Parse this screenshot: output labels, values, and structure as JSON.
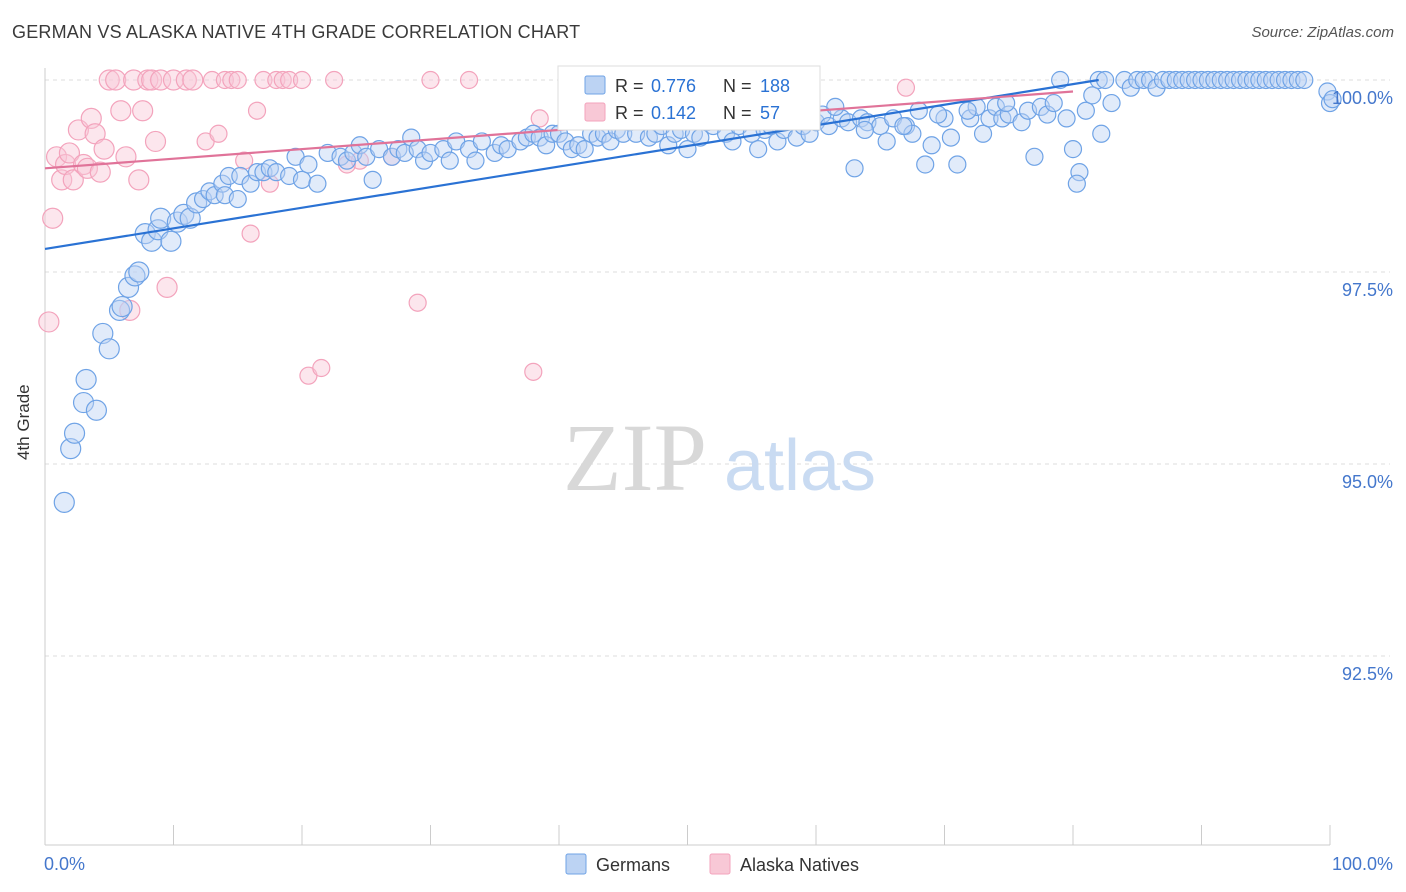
{
  "title": "GERMAN VS ALASKA NATIVE 4TH GRADE CORRELATION CHART",
  "source": "Source: ZipAtlas.com",
  "watermark": {
    "zip": "ZIP",
    "atlas": "atlas"
  },
  "colors": {
    "blue": "#6fa3e6",
    "blue_line": "#2a72d4",
    "pink": "#f3a3bc",
    "pink_line": "#e07399",
    "tick_text": "#4477cc",
    "grid": "#dddddd"
  },
  "chart_data": {
    "type": "scatter",
    "title": "GERMAN VS ALASKA NATIVE 4TH GRADE CORRELATION CHART",
    "xlabel": "",
    "ylabel": "4th Grade",
    "xlim": [
      0,
      100
    ],
    "ylim": [
      90,
      100.4
    ],
    "x_tick_labels": [
      "0.0%",
      "100.0%"
    ],
    "y_ticks": [
      100,
      97.5,
      95,
      92.5
    ],
    "y_tick_labels": [
      "100.0%",
      "97.5%",
      "95.0%",
      "92.5%"
    ],
    "grid": true,
    "legend_position": "bottom-center",
    "stats": [
      {
        "r_label": "R =",
        "r": "0.776",
        "n_label": "N =",
        "n": "188"
      },
      {
        "r_label": "R =",
        "r": "0.142",
        "n_label": "N =",
        "n": "57"
      }
    ],
    "series": [
      {
        "name": "Germans",
        "color": "#6fa3e6",
        "trend": {
          "x": [
            0,
            82
          ],
          "y": [
            97.8,
            100.0
          ]
        },
        "points": [
          [
            1.5,
            94.5
          ],
          [
            2,
            95.2
          ],
          [
            2.3,
            95.4
          ],
          [
            3,
            95.8
          ],
          [
            3.2,
            96.1
          ],
          [
            4,
            95.7
          ],
          [
            4.5,
            96.7
          ],
          [
            5,
            96.5
          ],
          [
            5.8,
            97.0
          ],
          [
            6,
            97.05
          ],
          [
            6.5,
            97.3
          ],
          [
            7,
            97.45
          ],
          [
            7.3,
            97.5
          ],
          [
            7.8,
            98.0
          ],
          [
            8.3,
            97.9
          ],
          [
            8.8,
            98.05
          ],
          [
            9,
            98.2
          ],
          [
            9.8,
            97.9
          ],
          [
            10.3,
            98.15
          ],
          [
            10.8,
            98.25
          ],
          [
            11.3,
            98.2
          ],
          [
            11.8,
            98.4
          ],
          [
            12.3,
            98.45
          ],
          [
            12.8,
            98.55
          ],
          [
            13.2,
            98.5
          ],
          [
            13.8,
            98.65
          ],
          [
            14,
            98.5
          ],
          [
            14.3,
            98.75
          ],
          [
            15,
            98.45
          ],
          [
            15.2,
            98.75
          ],
          [
            16,
            98.65
          ],
          [
            16.5,
            98.8
          ],
          [
            17,
            98.8
          ],
          [
            17.5,
            98.85
          ],
          [
            18,
            98.8
          ],
          [
            19,
            98.75
          ],
          [
            19.5,
            99.0
          ],
          [
            20,
            98.7
          ],
          [
            20.5,
            98.9
          ],
          [
            21.2,
            98.65
          ],
          [
            22,
            99.05
          ],
          [
            23,
            99.0
          ],
          [
            23.5,
            98.95
          ],
          [
            24,
            99.05
          ],
          [
            24.5,
            99.15
          ],
          [
            25,
            99.0
          ],
          [
            25.5,
            98.7
          ],
          [
            26,
            99.1
          ],
          [
            27,
            99.0
          ],
          [
            27.5,
            99.1
          ],
          [
            28,
            99.05
          ],
          [
            28.5,
            99.25
          ],
          [
            29,
            99.1
          ],
          [
            29.5,
            98.95
          ],
          [
            30,
            99.05
          ],
          [
            31,
            99.1
          ],
          [
            31.5,
            98.95
          ],
          [
            32,
            99.2
          ],
          [
            33,
            99.1
          ],
          [
            33.5,
            98.95
          ],
          [
            34,
            99.2
          ],
          [
            35,
            99.05
          ],
          [
            35.5,
            99.15
          ],
          [
            36,
            99.1
          ],
          [
            37,
            99.2
          ],
          [
            37.5,
            99.25
          ],
          [
            38,
            99.3
          ],
          [
            38.5,
            99.25
          ],
          [
            39,
            99.15
          ],
          [
            39.5,
            99.3
          ],
          [
            40,
            99.3
          ],
          [
            40.5,
            99.2
          ],
          [
            41,
            99.1
          ],
          [
            41.5,
            99.15
          ],
          [
            42,
            99.1
          ],
          [
            42.5,
            99.3
          ],
          [
            43,
            99.25
          ],
          [
            43.5,
            99.3
          ],
          [
            44,
            99.2
          ],
          [
            44.5,
            99.35
          ],
          [
            45,
            99.3
          ],
          [
            45.5,
            99.45
          ],
          [
            46,
            99.3
          ],
          [
            47,
            99.25
          ],
          [
            47.5,
            99.3
          ],
          [
            48,
            99.4
          ],
          [
            48.5,
            99.15
          ],
          [
            49,
            99.3
          ],
          [
            49.5,
            99.35
          ],
          [
            50,
            99.1
          ],
          [
            50.5,
            99.3
          ],
          [
            51,
            99.25
          ],
          [
            51.5,
            99.45
          ],
          [
            52,
            99.4
          ],
          [
            53,
            99.3
          ],
          [
            53.5,
            99.2
          ],
          [
            54,
            99.4
          ],
          [
            55,
            99.3
          ],
          [
            55.5,
            99.1
          ],
          [
            56,
            99.35
          ],
          [
            56.5,
            99.4
          ],
          [
            57,
            99.2
          ],
          [
            57.5,
            99.35
          ],
          [
            58,
            99.5
          ],
          [
            58.5,
            99.25
          ],
          [
            59,
            99.4
          ],
          [
            59.5,
            99.3
          ],
          [
            60,
            99.45
          ],
          [
            60.5,
            99.55
          ],
          [
            61,
            99.4
          ],
          [
            62,
            99.5
          ],
          [
            62.5,
            99.45
          ],
          [
            63,
            98.85
          ],
          [
            63.5,
            99.5
          ],
          [
            64,
            99.45
          ],
          [
            65,
            99.4
          ],
          [
            65.5,
            99.2
          ],
          [
            66,
            99.5
          ],
          [
            67,
            99.4
          ],
          [
            67.5,
            99.3
          ],
          [
            68,
            99.6
          ],
          [
            68.5,
            98.9
          ],
          [
            69,
            99.15
          ],
          [
            70,
            99.5
          ],
          [
            70.5,
            99.25
          ],
          [
            71,
            98.9
          ],
          [
            72,
            99.5
          ],
          [
            72.5,
            99.65
          ],
          [
            73,
            99.3
          ],
          [
            73.5,
            99.5
          ],
          [
            74,
            99.65
          ],
          [
            74.5,
            99.5
          ],
          [
            75,
            99.55
          ],
          [
            76,
            99.45
          ],
          [
            76.5,
            99.6
          ],
          [
            77,
            99.0
          ],
          [
            77.5,
            99.65
          ],
          [
            78,
            99.55
          ],
          [
            78.5,
            99.7
          ],
          [
            79,
            100.0
          ],
          [
            79.5,
            99.5
          ],
          [
            80,
            99.1
          ],
          [
            80.5,
            98.8
          ],
          [
            81,
            99.6
          ],
          [
            81.5,
            99.8
          ],
          [
            82,
            100.0
          ],
          [
            82.5,
            100.0
          ],
          [
            83,
            99.7
          ],
          [
            84,
            100.0
          ],
          [
            84.5,
            99.9
          ],
          [
            85,
            100.0
          ],
          [
            85.5,
            100.0
          ],
          [
            86,
            100.0
          ],
          [
            86.5,
            99.9
          ],
          [
            87,
            100.0
          ],
          [
            87.5,
            100.0
          ],
          [
            88,
            100.0
          ],
          [
            88.5,
            100.0
          ],
          [
            89,
            100.0
          ],
          [
            89.5,
            100.0
          ],
          [
            90,
            100.0
          ],
          [
            90.5,
            100.0
          ],
          [
            91,
            100.0
          ],
          [
            91.5,
            100.0
          ],
          [
            92,
            100.0
          ],
          [
            92.5,
            100.0
          ],
          [
            93,
            100.0
          ],
          [
            93.5,
            100.0
          ],
          [
            94,
            100.0
          ],
          [
            94.5,
            100.0
          ],
          [
            95,
            100.0
          ],
          [
            95.5,
            100.0
          ],
          [
            96,
            100.0
          ],
          [
            96.5,
            100.0
          ],
          [
            97,
            100.0
          ],
          [
            97.5,
            100.0
          ],
          [
            98,
            100.0
          ],
          [
            99.8,
            99.85
          ],
          [
            100,
            99.7
          ],
          [
            100.2,
            99.75
          ],
          [
            61.5,
            99.65
          ],
          [
            63.8,
            99.35
          ],
          [
            66.8,
            99.4
          ],
          [
            69.5,
            99.55
          ],
          [
            71.8,
            99.6
          ],
          [
            74.8,
            99.7
          ],
          [
            82.2,
            99.3
          ],
          [
            80.3,
            98.65
          ]
        ]
      },
      {
        "name": "Alaska Natives",
        "color": "#f3a3bc",
        "trend": {
          "x": [
            0,
            80
          ],
          "y": [
            98.85,
            99.85
          ]
        },
        "points": [
          [
            0.3,
            96.85
          ],
          [
            0.6,
            98.2
          ],
          [
            0.9,
            99.0
          ],
          [
            1.3,
            98.7
          ],
          [
            1.6,
            98.9
          ],
          [
            1.9,
            99.05
          ],
          [
            2.2,
            98.7
          ],
          [
            2.6,
            99.35
          ],
          [
            3.0,
            98.9
          ],
          [
            3.3,
            98.85
          ],
          [
            3.6,
            99.5
          ],
          [
            3.9,
            99.3
          ],
          [
            4.3,
            98.8
          ],
          [
            4.6,
            99.1
          ],
          [
            5.0,
            100.0
          ],
          [
            5.5,
            100.0
          ],
          [
            5.9,
            99.6
          ],
          [
            6.3,
            99.0
          ],
          [
            6.6,
            97.0
          ],
          [
            6.9,
            100.0
          ],
          [
            7.3,
            98.7
          ],
          [
            7.6,
            99.6
          ],
          [
            8.0,
            100.0
          ],
          [
            8.3,
            100.0
          ],
          [
            8.6,
            99.2
          ],
          [
            9.0,
            100.0
          ],
          [
            9.5,
            97.3
          ],
          [
            10.0,
            100.0
          ],
          [
            11.0,
            100.0
          ],
          [
            11.5,
            100.0
          ],
          [
            12.5,
            99.2
          ],
          [
            13.0,
            100.0
          ],
          [
            13.5,
            99.3
          ],
          [
            14.0,
            100.0
          ],
          [
            14.5,
            100.0
          ],
          [
            15.0,
            100.0
          ],
          [
            15.5,
            98.95
          ],
          [
            16.0,
            98.0
          ],
          [
            16.5,
            99.6
          ],
          [
            17.0,
            100.0
          ],
          [
            17.5,
            98.65
          ],
          [
            18.0,
            100.0
          ],
          [
            18.5,
            100.0
          ],
          [
            19.0,
            100.0
          ],
          [
            20.0,
            100.0
          ],
          [
            20.5,
            96.15
          ],
          [
            21.5,
            96.25
          ],
          [
            22.5,
            100.0
          ],
          [
            23.5,
            98.9
          ],
          [
            24.5,
            98.95
          ],
          [
            27.0,
            99.0
          ],
          [
            29.0,
            97.1
          ],
          [
            30.0,
            100.0
          ],
          [
            33.0,
            100.0
          ],
          [
            38.5,
            99.5
          ],
          [
            38.0,
            96.2
          ],
          [
            67.0,
            99.9
          ]
        ]
      }
    ]
  },
  "legend": {
    "germans": "Germans",
    "alaska": "Alaska Natives"
  }
}
